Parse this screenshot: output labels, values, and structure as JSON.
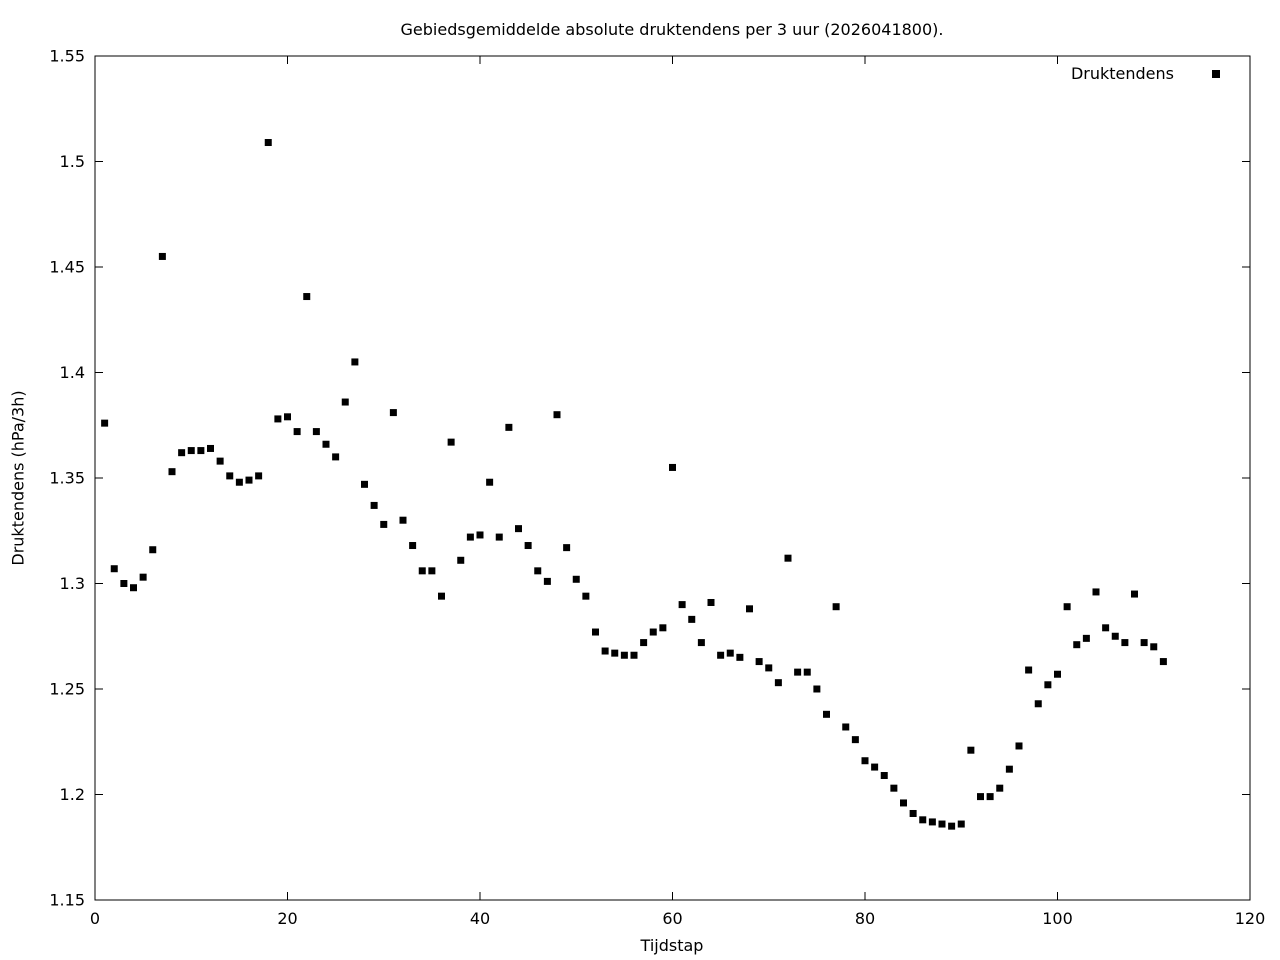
{
  "chart_data": {
    "type": "scatter",
    "title": "Gebiedsgemiddelde absolute druktendens per 3 uur (2026041800).",
    "xlabel": "Tijdstap",
    "ylabel": "Druktendens (hPa/3h)",
    "xlim": [
      0,
      120
    ],
    "ylim": [
      1.15,
      1.55
    ],
    "grid": false,
    "xticks": {
      "values": [
        0,
        20,
        40,
        60,
        80,
        100,
        120
      ],
      "labels": [
        "0",
        "20",
        "40",
        "60",
        "80",
        "100",
        "120"
      ]
    },
    "yticks": {
      "values": [
        1.15,
        1.2,
        1.25,
        1.3,
        1.35,
        1.4,
        1.45,
        1.5,
        1.55
      ],
      "labels": [
        "1.15",
        "1.2",
        "1.25",
        "1.3",
        "1.35",
        "1.4",
        "1.45",
        "1.5",
        "1.55"
      ]
    },
    "legend": {
      "label": "Druktendens",
      "position": "top-right"
    },
    "marker": {
      "shape": "square",
      "color": "#000000",
      "size": 7
    },
    "series": [
      {
        "name": "Druktendens",
        "x": [
          1,
          2,
          3,
          4,
          5,
          6,
          7,
          8,
          9,
          10,
          11,
          12,
          13,
          14,
          15,
          16,
          17,
          18,
          19,
          20,
          21,
          22,
          23,
          24,
          25,
          26,
          27,
          28,
          29,
          30,
          31,
          32,
          33,
          34,
          35,
          36,
          37,
          38,
          39,
          40,
          41,
          42,
          43,
          44,
          45,
          46,
          47,
          48,
          49,
          50,
          51,
          52,
          53,
          54,
          55,
          56,
          57,
          58,
          59,
          60,
          61,
          62,
          63,
          64,
          65,
          66,
          67,
          68,
          69,
          70,
          71,
          72,
          73,
          74,
          75,
          76,
          77,
          78,
          79,
          80,
          81,
          82,
          83,
          84,
          85,
          86,
          87,
          88,
          89,
          90,
          91,
          92,
          93,
          94,
          95,
          96,
          97,
          98,
          99,
          100,
          101,
          102,
          103,
          104,
          105,
          106,
          107,
          108,
          109,
          110,
          111
        ],
        "y": [
          1.376,
          1.307,
          1.3,
          1.298,
          1.303,
          1.316,
          1.455,
          1.353,
          1.362,
          1.363,
          1.363,
          1.364,
          1.358,
          1.351,
          1.348,
          1.349,
          1.351,
          1.509,
          1.378,
          1.379,
          1.372,
          1.436,
          1.372,
          1.366,
          1.36,
          1.386,
          1.405,
          1.347,
          1.337,
          1.328,
          1.381,
          1.33,
          1.318,
          1.306,
          1.306,
          1.294,
          1.367,
          1.311,
          1.322,
          1.323,
          1.348,
          1.322,
          1.374,
          1.326,
          1.318,
          1.306,
          1.301,
          1.38,
          1.317,
          1.302,
          1.294,
          1.277,
          1.268,
          1.267,
          1.266,
          1.266,
          1.272,
          1.277,
          1.279,
          1.355,
          1.29,
          1.283,
          1.272,
          1.291,
          1.266,
          1.267,
          1.265,
          1.288,
          1.263,
          1.26,
          1.253,
          1.312,
          1.258,
          1.258,
          1.25,
          1.238,
          1.289,
          1.232,
          1.226,
          1.216,
          1.213,
          1.209,
          1.203,
          1.196,
          1.191,
          1.188,
          1.187,
          1.186,
          1.185,
          1.186,
          1.221,
          1.199,
          1.199,
          1.203,
          1.212,
          1.223,
          1.259,
          1.243,
          1.252,
          1.257,
          1.289,
          1.271,
          1.274,
          1.296,
          1.279,
          1.275,
          1.272,
          1.295,
          1.272,
          1.27,
          1.263
        ]
      }
    ]
  },
  "colors": {
    "background": "#ffffff",
    "foreground": "#000000"
  }
}
